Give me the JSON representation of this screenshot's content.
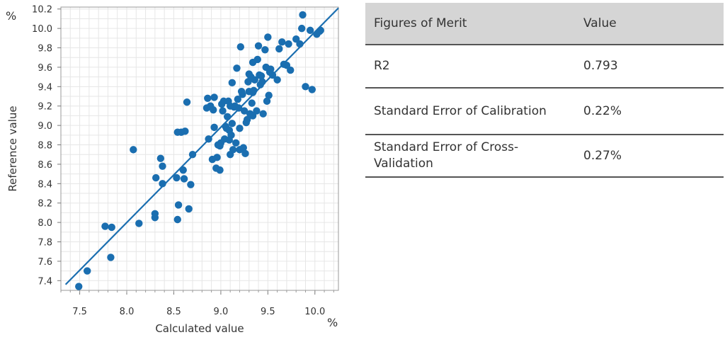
{
  "table": {
    "headers": [
      "Figures of Merit",
      "Value"
    ],
    "rows": [
      {
        "metric": "R2",
        "value": "0.793"
      },
      {
        "metric": "Standard Error of Calibration",
        "value": "0.22%"
      },
      {
        "metric": "Standard Error of Cross-Validation",
        "value": "0.27%"
      }
    ]
  },
  "chart_data": {
    "type": "scatter",
    "xlabel": "Calculated value",
    "ylabel": "Reference value",
    "x_unit": "%",
    "y_unit": "%",
    "xlim": [
      7.3,
      10.25
    ],
    "ylim": [
      7.3,
      10.22
    ],
    "xticks": [
      "7.5",
      "8.0",
      "8.5",
      "9.0",
      "9.5",
      "10.0"
    ],
    "yticks": [
      "7.4",
      "7.6",
      "7.8",
      "8.0",
      "8.2",
      "8.4",
      "8.6",
      "8.8",
      "9.0",
      "9.2",
      "9.4",
      "9.6",
      "9.8",
      "10.0",
      "10.2"
    ],
    "grid": true,
    "marker_color": "#1a6eb0",
    "fit_line": {
      "from": [
        7.35,
        7.36
      ],
      "to": [
        10.25,
        10.21
      ],
      "color": "#1a6eb0"
    },
    "points": [
      [
        7.49,
        7.34
      ],
      [
        7.58,
        7.5
      ],
      [
        7.77,
        7.96
      ],
      [
        7.84,
        7.95
      ],
      [
        7.83,
        7.64
      ],
      [
        8.07,
        8.75
      ],
      [
        8.13,
        7.99
      ],
      [
        8.3,
        8.09
      ],
      [
        8.3,
        8.05
      ],
      [
        8.31,
        8.46
      ],
      [
        8.36,
        8.66
      ],
      [
        8.38,
        8.58
      ],
      [
        8.38,
        8.4
      ],
      [
        8.53,
        8.46
      ],
      [
        8.54,
        8.93
      ],
      [
        8.54,
        8.03
      ],
      [
        8.55,
        8.18
      ],
      [
        8.58,
        8.93
      ],
      [
        8.6,
        8.54
      ],
      [
        8.61,
        8.45
      ],
      [
        8.62,
        8.94
      ],
      [
        8.64,
        9.24
      ],
      [
        8.66,
        8.14
      ],
      [
        8.68,
        8.39
      ],
      [
        8.7,
        8.7
      ],
      [
        8.85,
        9.18
      ],
      [
        8.86,
        9.28
      ],
      [
        8.87,
        8.86
      ],
      [
        8.89,
        9.2
      ],
      [
        8.91,
        8.65
      ],
      [
        8.92,
        9.16
      ],
      [
        8.93,
        8.98
      ],
      [
        8.93,
        9.29
      ],
      [
        8.95,
        8.56
      ],
      [
        8.96,
        8.67
      ],
      [
        8.97,
        8.8
      ],
      [
        8.99,
        8.54
      ],
      [
        8.99,
        8.79
      ],
      [
        9.0,
        8.82
      ],
      [
        9.01,
        9.22
      ],
      [
        9.02,
        9.15
      ],
      [
        9.03,
        9.25
      ],
      [
        9.04,
        8.86
      ],
      [
        9.05,
        8.99
      ],
      [
        9.06,
        8.97
      ],
      [
        9.07,
        9.09
      ],
      [
        9.08,
        9.25
      ],
      [
        9.09,
        8.85
      ],
      [
        9.09,
        8.95
      ],
      [
        9.1,
        9.2
      ],
      [
        9.1,
        8.7
      ],
      [
        9.11,
        8.9
      ],
      [
        9.12,
        9.44
      ],
      [
        9.12,
        9.02
      ],
      [
        9.13,
        8.75
      ],
      [
        9.14,
        9.19
      ],
      [
        9.15,
        9.2
      ],
      [
        9.16,
        8.82
      ],
      [
        9.17,
        9.59
      ],
      [
        9.18,
        9.27
      ],
      [
        9.19,
        9.18
      ],
      [
        9.2,
        8.97
      ],
      [
        9.2,
        8.75
      ],
      [
        9.21,
        9.81
      ],
      [
        9.22,
        9.35
      ],
      [
        9.23,
        9.32
      ],
      [
        9.24,
        8.77
      ],
      [
        9.25,
        9.15
      ],
      [
        9.26,
        8.71
      ],
      [
        9.27,
        9.03
      ],
      [
        9.28,
        9.06
      ],
      [
        9.29,
        9.45
      ],
      [
        9.3,
        9.53
      ],
      [
        9.3,
        9.35
      ],
      [
        9.31,
        9.12
      ],
      [
        9.32,
        9.5
      ],
      [
        9.33,
        9.23
      ],
      [
        9.34,
        9.65
      ],
      [
        9.34,
        9.1
      ],
      [
        9.34,
        9.34
      ],
      [
        9.35,
        9.36
      ],
      [
        9.36,
        9.47
      ],
      [
        9.38,
        9.15
      ],
      [
        9.39,
        9.68
      ],
      [
        9.4,
        9.82
      ],
      [
        9.41,
        9.52
      ],
      [
        9.42,
        9.42
      ],
      [
        9.43,
        9.51
      ],
      [
        9.44,
        9.45
      ],
      [
        9.45,
        9.12
      ],
      [
        9.47,
        9.78
      ],
      [
        9.48,
        9.6
      ],
      [
        9.49,
        9.25
      ],
      [
        9.5,
        9.91
      ],
      [
        9.51,
        9.31
      ],
      [
        9.52,
        9.55
      ],
      [
        9.53,
        9.58
      ],
      [
        9.55,
        9.52
      ],
      [
        9.6,
        9.47
      ],
      [
        9.62,
        9.79
      ],
      [
        9.65,
        9.86
      ],
      [
        9.67,
        9.63
      ],
      [
        9.7,
        9.62
      ],
      [
        9.72,
        9.84
      ],
      [
        9.74,
        9.57
      ],
      [
        9.8,
        9.89
      ],
      [
        9.84,
        9.84
      ],
      [
        9.86,
        10.0
      ],
      [
        9.87,
        10.14
      ],
      [
        9.9,
        9.4
      ],
      [
        9.95,
        9.98
      ],
      [
        9.97,
        9.37
      ],
      [
        10.02,
        9.94
      ],
      [
        10.05,
        9.97
      ],
      [
        10.06,
        9.98
      ]
    ]
  }
}
